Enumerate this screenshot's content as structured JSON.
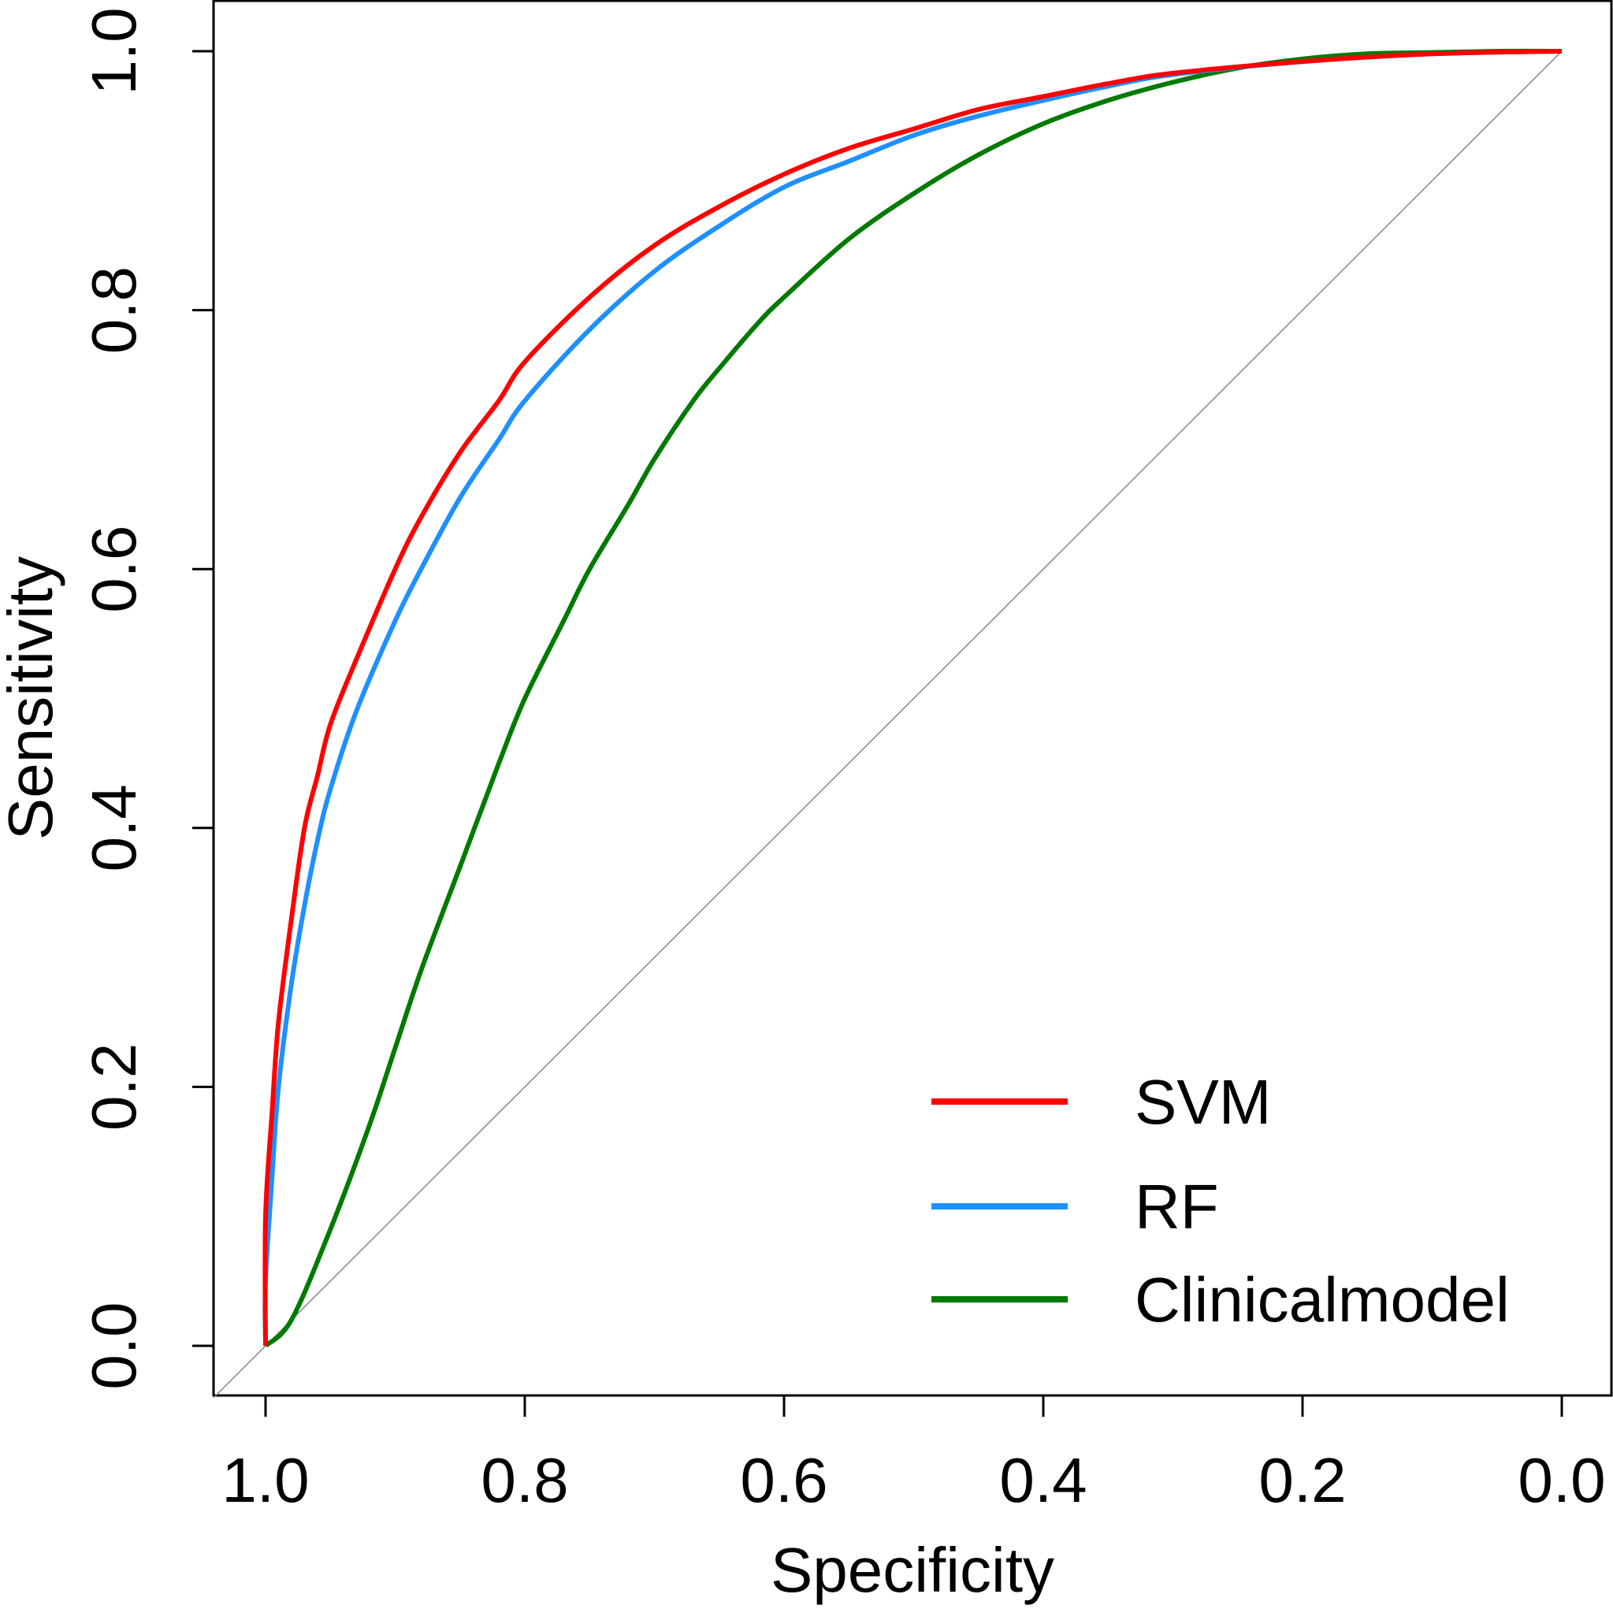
{
  "chart_data": {
    "type": "line",
    "title": "",
    "xlabel": "Specificity",
    "ylabel": "Sensitivity",
    "xlim": [
      1.0,
      0.0
    ],
    "ylim": [
      0.0,
      1.0
    ],
    "x_reversed": true,
    "grid": false,
    "legend_position": "bottom-right",
    "xticks": [
      {
        "value": 1.0,
        "label": "1.0"
      },
      {
        "value": 0.8,
        "label": "0.8"
      },
      {
        "value": 0.6,
        "label": "0.6"
      },
      {
        "value": 0.4,
        "label": "0.4"
      },
      {
        "value": 0.2,
        "label": "0.2"
      },
      {
        "value": 0.0,
        "label": "0.0"
      }
    ],
    "yticks": [
      {
        "value": 0.0,
        "label": "0.0"
      },
      {
        "value": 0.2,
        "label": "0.2"
      },
      {
        "value": 0.4,
        "label": "0.4"
      },
      {
        "value": 0.6,
        "label": "0.6"
      },
      {
        "value": 0.8,
        "label": "0.8"
      },
      {
        "value": 1.0,
        "label": "1.0"
      }
    ],
    "reference_line": {
      "from": [
        1.0,
        0.0
      ],
      "to": [
        0.0,
        1.0
      ],
      "color": "#888888"
    },
    "series": [
      {
        "name": "SVM",
        "color": "#ff0000",
        "specificity": [
          1.0,
          1.0,
          0.995,
          0.99,
          0.98,
          0.97,
          0.96,
          0.95,
          0.93,
          0.9,
          0.88,
          0.85,
          0.82,
          0.8,
          0.75,
          0.7,
          0.65,
          0.6,
          0.55,
          0.5,
          0.45,
          0.4,
          0.35,
          0.3,
          0.2,
          0.1,
          0.0
        ],
        "sensitivity": [
          0.0,
          0.1,
          0.18,
          0.25,
          0.33,
          0.4,
          0.44,
          0.48,
          0.53,
          0.6,
          0.64,
          0.69,
          0.73,
          0.76,
          0.81,
          0.85,
          0.88,
          0.905,
          0.925,
          0.94,
          0.955,
          0.965,
          0.975,
          0.983,
          0.992,
          0.998,
          1.0
        ]
      },
      {
        "name": "RF",
        "color": "#1e90ff",
        "specificity": [
          1.0,
          1.0,
          0.995,
          0.99,
          0.98,
          0.97,
          0.96,
          0.95,
          0.93,
          0.9,
          0.88,
          0.85,
          0.82,
          0.8,
          0.75,
          0.7,
          0.65,
          0.6,
          0.55,
          0.5,
          0.45,
          0.4,
          0.35,
          0.3,
          0.2,
          0.1,
          0.0
        ],
        "sensitivity": [
          0.0,
          0.05,
          0.13,
          0.2,
          0.28,
          0.34,
          0.39,
          0.43,
          0.49,
          0.56,
          0.6,
          0.655,
          0.7,
          0.73,
          0.785,
          0.83,
          0.865,
          0.895,
          0.915,
          0.935,
          0.95,
          0.962,
          0.973,
          0.982,
          0.992,
          0.998,
          1.0
        ]
      },
      {
        "name": "Clinicalmodel",
        "color": "#007a00",
        "specificity": [
          1.0,
          0.98,
          0.95,
          0.92,
          0.9,
          0.88,
          0.85,
          0.82,
          0.8,
          0.77,
          0.75,
          0.72,
          0.7,
          0.67,
          0.65,
          0.62,
          0.6,
          0.55,
          0.5,
          0.45,
          0.4,
          0.35,
          0.3,
          0.25,
          0.2,
          0.15,
          0.1,
          0.05,
          0.0
        ],
        "sensitivity": [
          0.0,
          0.02,
          0.09,
          0.17,
          0.23,
          0.29,
          0.37,
          0.45,
          0.5,
          0.56,
          0.6,
          0.65,
          0.685,
          0.73,
          0.755,
          0.79,
          0.81,
          0.855,
          0.89,
          0.92,
          0.944,
          0.962,
          0.976,
          0.987,
          0.994,
          0.998,
          0.999,
          1.0,
          1.0
        ]
      }
    ]
  }
}
